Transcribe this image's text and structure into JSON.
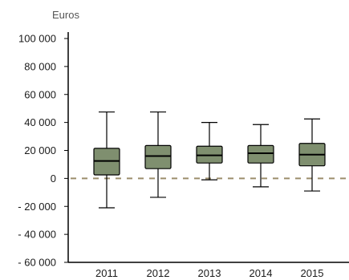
{
  "chart_data": {
    "type": "boxplot",
    "unit_label": "Euros",
    "categories": [
      "2011",
      "2012",
      "2013",
      "2014",
      "2015"
    ],
    "y_ticks": [
      {
        "value": 100000,
        "label": "100 000"
      },
      {
        "value": 80000,
        "label": "80 000"
      },
      {
        "value": 60000,
        "label": "60 000"
      },
      {
        "value": 40000,
        "label": "40 000"
      },
      {
        "value": 20000,
        "label": "20 000"
      },
      {
        "value": 0,
        "label": "0"
      },
      {
        "value": -20000,
        "label": "- 20 000"
      },
      {
        "value": -40000,
        "label": "- 40 000"
      },
      {
        "value": -60000,
        "label": "- 60 000"
      }
    ],
    "ylim": [
      -60000,
      100000
    ],
    "boxes": [
      {
        "category": "2011",
        "whisker_low": -21000,
        "q1": 2500,
        "median": 12500,
        "q3": 21500,
        "whisker_high": 47500
      },
      {
        "category": "2012",
        "whisker_low": -13500,
        "q1": 7000,
        "median": 16000,
        "q3": 23500,
        "whisker_high": 47500
      },
      {
        "category": "2013",
        "whisker_low": -1000,
        "q1": 11000,
        "median": 16500,
        "q3": 23000,
        "whisker_high": 40000
      },
      {
        "category": "2014",
        "whisker_low": -6000,
        "q1": 11000,
        "median": 18000,
        "q3": 23500,
        "whisker_high": 38500
      },
      {
        "category": "2015",
        "whisker_low": -9000,
        "q1": 9000,
        "median": 17000,
        "q3": 25000,
        "whisker_high": 42500
      }
    ],
    "reference_line": {
      "value": 0,
      "style": "dashed"
    },
    "colors": {
      "box_fill": "#7f8f6f",
      "box_stroke": "#000000",
      "reference_line": "#9c8e6c",
      "axis": "#000000"
    },
    "grid": false,
    "legend": "none"
  }
}
